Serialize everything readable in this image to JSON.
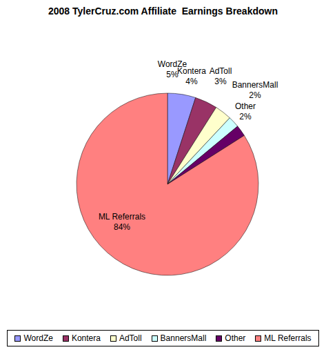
{
  "chart_data": {
    "type": "pie",
    "title": "2008 TylerCruz.com Affiliate  Earnings Breakdown",
    "categories": [
      "WordZe",
      "Kontera",
      "AdToll",
      "BannersMall",
      "Other",
      "ML Referrals"
    ],
    "values": [
      5,
      4,
      3,
      2,
      2,
      84
    ],
    "value_labels": [
      "5%",
      "4%",
      "3%",
      "2%",
      "2%",
      "84%"
    ],
    "colors": [
      "#9999ff",
      "#993366",
      "#ffffcc",
      "#ccffff",
      "#660066",
      "#ff8080"
    ],
    "data_labels": true,
    "legend": "bottom"
  }
}
